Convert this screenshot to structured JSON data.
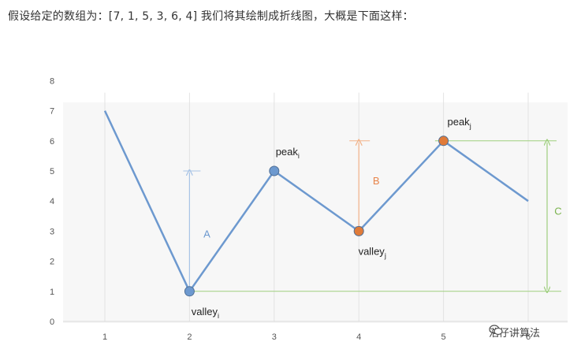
{
  "intro_text": "假设给定的数组为：[7, 1, 5, 3, 6, 4]   我们将其绘制成折线图，大概是下面这样：",
  "watermark": "浩仔讲算法",
  "colors": {
    "line": "#6d99cf",
    "dot_blue": "#6d99cf",
    "dot_orange": "#e07b39",
    "arrow_a": "#a8c4e6",
    "arrow_b": "#f2b38a",
    "arrow_c": "#9fcf7f",
    "label_a": "#6d99cf",
    "label_b": "#e8844a",
    "label_c": "#7ab34d"
  },
  "chart_data": {
    "type": "line",
    "title": "",
    "xlabel": "",
    "ylabel": "",
    "x": [
      1,
      2,
      3,
      4,
      5,
      6
    ],
    "series": [
      {
        "values": [
          7,
          1,
          5,
          3,
          6,
          4
        ]
      }
    ],
    "x_ticks": [
      "1",
      "2",
      "3",
      "4",
      "5",
      "6"
    ],
    "y_ticks": [
      "0",
      "1",
      "2",
      "3",
      "4",
      "5",
      "6",
      "7",
      "8"
    ],
    "ylim": [
      0,
      8
    ],
    "grid": "vertical",
    "markers": [
      {
        "x": 2,
        "y": 1,
        "label": "valley",
        "sub": "i",
        "color": "blue",
        "label_pos": "below"
      },
      {
        "x": 3,
        "y": 5,
        "label": "peak",
        "sub": "i",
        "color": "blue",
        "label_pos": "above"
      },
      {
        "x": 4,
        "y": 3,
        "label": "valley",
        "sub": "j",
        "color": "orange",
        "label_pos": "below"
      },
      {
        "x": 5,
        "y": 6,
        "label": "peak",
        "sub": "j",
        "color": "orange",
        "label_pos": "above"
      }
    ],
    "annotations": [
      {
        "label": "A",
        "x": 2,
        "y_from": 1,
        "y_to": 5,
        "color": "a"
      },
      {
        "label": "B",
        "x": 4,
        "y_from": 3,
        "y_to": 6,
        "color": "b"
      },
      {
        "label": "C",
        "x": 6.2,
        "y_from": 1,
        "y_to": 6,
        "color": "c"
      }
    ]
  }
}
